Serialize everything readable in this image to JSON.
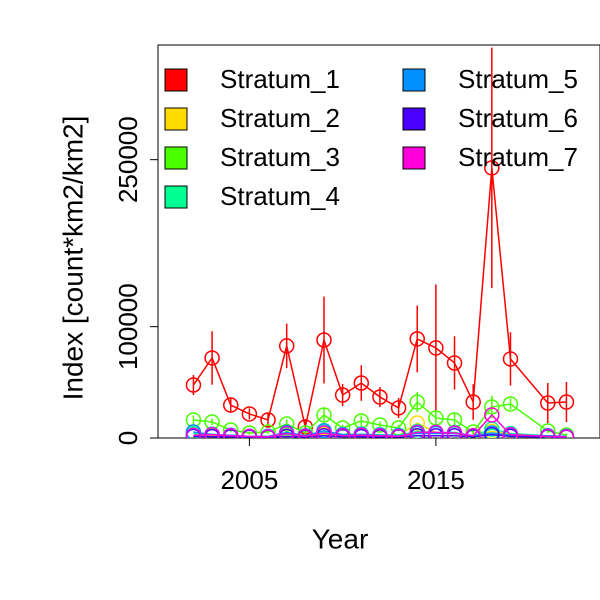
{
  "chart_data": {
    "type": "line",
    "xlabel": "Year",
    "ylabel": "Index [count*km2/km2]",
    "x": [
      2002,
      2003,
      2004,
      2005,
      2006,
      2007,
      2008,
      2009,
      2010,
      2011,
      2012,
      2013,
      2014,
      2015,
      2016,
      2017,
      2018,
      2019,
      2021,
      2022
    ],
    "xlim": [
      2000.1,
      2023.8
    ],
    "xticks": [
      2005,
      2015
    ],
    "ylim": [
      0,
      353000
    ],
    "yticks": [
      0,
      100000,
      250000
    ],
    "series": [
      {
        "name": "Stratum_1",
        "color": "#FF0000",
        "values": [
          47600,
          71900,
          29600,
          21600,
          16200,
          82700,
          9900,
          88000,
          38600,
          49400,
          36800,
          27000,
          89000,
          80900,
          67400,
          32300,
          242600,
          71000,
          31400,
          32300
        ],
        "errors": [
          9000,
          24000,
          7000,
          5000,
          6000,
          20000,
          7000,
          39000,
          10000,
          16000,
          9000,
          9000,
          30000,
          57000,
          24000,
          16000,
          108000,
          24000,
          18000,
          18000
        ]
      },
      {
        "name": "Stratum_2",
        "color": "#FFDB00",
        "values": [
          2000,
          2500,
          1500,
          1000,
          800,
          2000,
          1000,
          3000,
          2000,
          2500,
          2000,
          2000,
          13500,
          5000,
          4000,
          1500,
          6000,
          3000,
          1500,
          800
        ]
      },
      {
        "name": "Stratum_3",
        "color": "#49FF00",
        "values": [
          16200,
          14400,
          7200,
          4500,
          5400,
          12600,
          4500,
          20700,
          9000,
          15300,
          11700,
          9000,
          32300,
          18000,
          16200,
          5400,
          27900,
          30500,
          6300,
          2700
        ],
        "errors": [
          4000,
          3000,
          2000,
          1500,
          1500,
          4000,
          1500,
          6000,
          3000,
          5000,
          3000,
          3000,
          9000,
          6000,
          6000,
          2000,
          10000,
          5000,
          2000,
          1500
        ]
      },
      {
        "name": "Stratum_4",
        "color": "#00FF92",
        "values": [
          4000,
          3500,
          2000,
          1500,
          1500,
          3500,
          1500,
          5000,
          3000,
          3500,
          3000,
          2500,
          6000,
          5000,
          5000,
          2000,
          8000,
          4000,
          2000,
          1000
        ]
      },
      {
        "name": "Stratum_5",
        "color": "#0092FF",
        "values": [
          5400,
          3000,
          2500,
          1500,
          1500,
          5000,
          2000,
          6500,
          3000,
          3000,
          2500,
          2000,
          4000,
          4000,
          4000,
          2000,
          4500,
          2500,
          2000,
          1500
        ]
      },
      {
        "name": "Stratum_6",
        "color": "#4900FF",
        "values": [
          1500,
          1200,
          1000,
          800,
          700,
          1500,
          800,
          2000,
          1200,
          1200,
          1000,
          1000,
          2000,
          2000,
          2000,
          1000,
          3000,
          1500,
          1000,
          700
        ]
      },
      {
        "name": "Stratum_7",
        "color": "#FF00DB",
        "values": [
          2500,
          3000,
          2000,
          1500,
          1000,
          4000,
          1500,
          4500,
          2000,
          2500,
          2000,
          1500,
          5000,
          5000,
          4500,
          2000,
          20700,
          3000,
          1500,
          1000
        ]
      }
    ],
    "legend": "top-left"
  }
}
